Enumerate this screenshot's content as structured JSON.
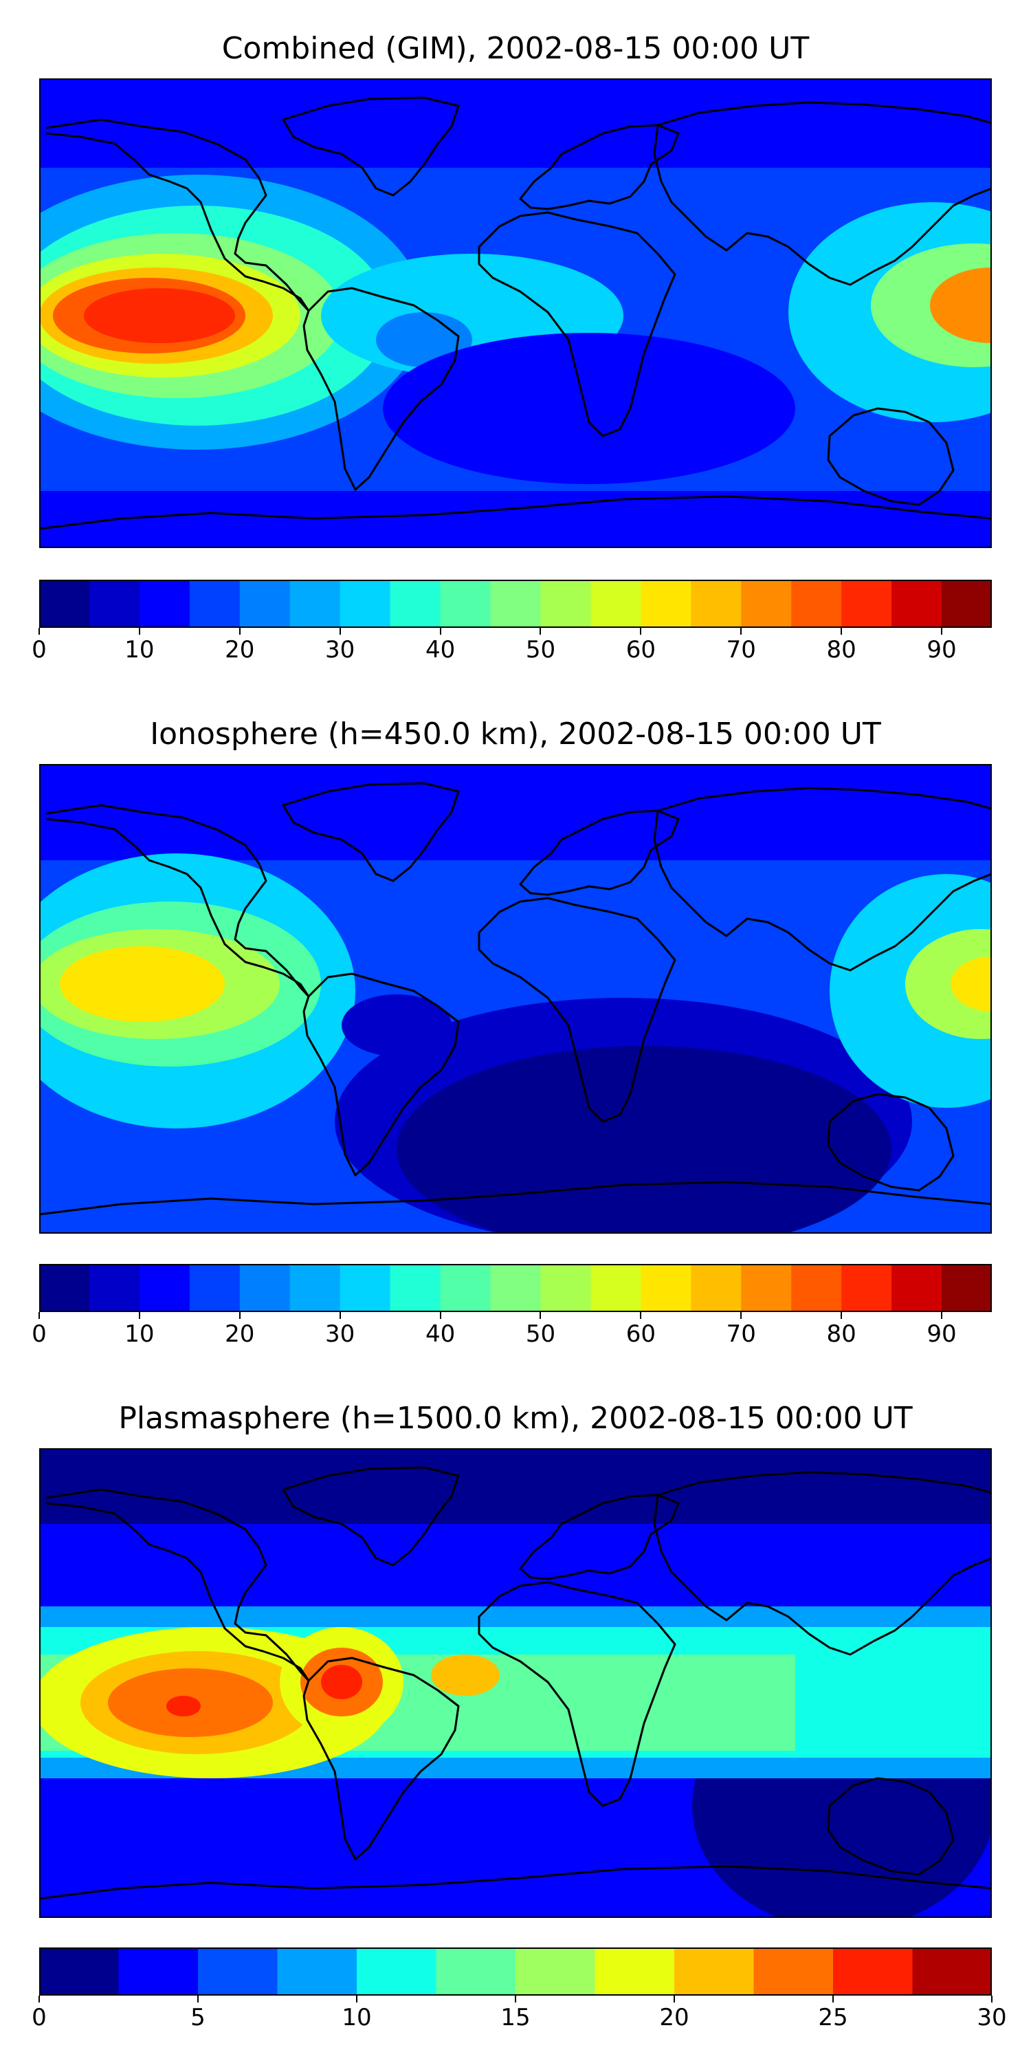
{
  "panels": [
    {
      "title": "Combined (GIM), 2002-08-15 00:00 UT",
      "colorbar": {
        "levels": [
          0,
          5,
          10,
          15,
          20,
          25,
          30,
          35,
          40,
          45,
          50,
          55,
          60,
          65,
          70,
          75,
          80,
          85,
          90,
          95
        ],
        "tick_labels": [
          "0",
          "10",
          "20",
          "30",
          "40",
          "50",
          "60",
          "70",
          "80",
          "90"
        ],
        "range": [
          0,
          95
        ]
      }
    },
    {
      "title": "Ionosphere  (h=450.0 km), 2002-08-15 00:00 UT",
      "colorbar": {
        "levels": [
          0,
          5,
          10,
          15,
          20,
          25,
          30,
          35,
          40,
          45,
          50,
          55,
          60,
          65,
          70,
          75,
          80,
          85,
          90,
          95
        ],
        "tick_labels": [
          "0",
          "10",
          "20",
          "30",
          "40",
          "50",
          "60",
          "70",
          "80",
          "90"
        ],
        "range": [
          0,
          95
        ]
      }
    },
    {
      "title": "Plasmasphere (h=1500.0 km), 2002-08-15 00:00 UT",
      "colorbar": {
        "levels": [
          0,
          2.5,
          5,
          7.5,
          10,
          12.5,
          15,
          17.5,
          20,
          22.5,
          25,
          27.5,
          30
        ],
        "tick_labels": [
          "0",
          "5",
          "10",
          "15",
          "20",
          "25",
          "30"
        ],
        "range": [
          0,
          30
        ]
      }
    }
  ],
  "colors": {
    "jet_19": [
      "#00008f",
      "#0000c8",
      "#0000ff",
      "#0040ff",
      "#0080ff",
      "#00aaff",
      "#00d4ff",
      "#20ffd6",
      "#50ffa8",
      "#80ff80",
      "#a8ff50",
      "#d6ff20",
      "#ffe600",
      "#ffbf00",
      "#ff8c00",
      "#ff5a00",
      "#ff2800",
      "#d00000",
      "#8f0000"
    ],
    "jet_12": [
      "#00008f",
      "#0000ff",
      "#0050ff",
      "#00a0ff",
      "#10ffe8",
      "#60ff9f",
      "#a0ff60",
      "#e8ff10",
      "#ffc000",
      "#ff7000",
      "#ff2000",
      "#b00000"
    ],
    "coastline": "#000000"
  }
}
